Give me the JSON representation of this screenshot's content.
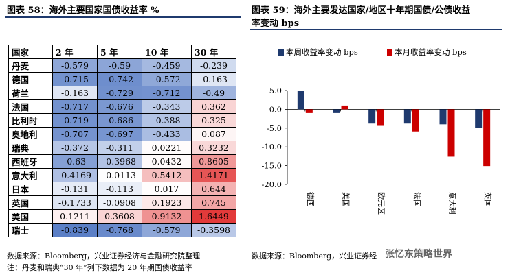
{
  "left": {
    "title": "图表 58：海外主要国家国债收益率 %",
    "source_line1": "数据来源：Bloomberg，兴业证券经济与金融研究院整理",
    "source_line2": "注：丹麦和瑞典“30 年”列下数据为 20 年期国债收益率",
    "table": {
      "headers": [
        "国家",
        "2 年",
        "5 年",
        "10 年",
        "30 年"
      ],
      "rows": [
        {
          "country": "丹麦",
          "values": [
            "-0.579",
            "-0.59",
            "-0.459",
            "-0.239"
          ]
        },
        {
          "country": "德国",
          "values": [
            "-0.715",
            "-0.742",
            "-0.572",
            "-0.163"
          ]
        },
        {
          "country": "荷兰",
          "values": [
            "-0.163",
            "-0.729",
            "-0.712",
            "-0.49"
          ]
        },
        {
          "country": "法国",
          "values": [
            "-0.717",
            "-0.676",
            "-0.343",
            "0.362"
          ]
        },
        {
          "country": "比利时",
          "values": [
            "-0.719",
            "-0.686",
            "-0.388",
            "0.325"
          ]
        },
        {
          "country": "奥地利",
          "values": [
            "-0.707",
            "-0.697",
            "-0.433",
            "0.087"
          ]
        },
        {
          "country": "瑞典",
          "values": [
            "-0.372",
            "-0.311",
            "0.0221",
            "0.3232"
          ]
        },
        {
          "country": "西班牙",
          "values": [
            "-0.63",
            "-0.3968",
            "0.0432",
            "0.8605"
          ]
        },
        {
          "country": "意大利",
          "values": [
            "-0.4169",
            "-0.0113",
            "0.5412",
            "1.4171"
          ]
        },
        {
          "country": "日本",
          "values": [
            "-0.131",
            "-0.113",
            "0.017",
            "0.644"
          ]
        },
        {
          "country": "英国",
          "values": [
            "-0.1733",
            "-0.0908",
            "0.1923",
            "0.745"
          ]
        },
        {
          "country": "美国",
          "values": [
            "0.1211",
            "0.3608",
            "0.9132",
            "1.6449"
          ]
        },
        {
          "country": "瑞士",
          "values": [
            "-0.839",
            "-0.768",
            "-0.579",
            "-0.3598"
          ]
        }
      ]
    }
  },
  "right": {
    "title_line1": "图表 59：海外主要发达国家/地区十年期国债/公债收益",
    "title_line2": "率变动 bps",
    "source": "数据来源：Bloomberg，兴业证券经",
    "watermark": "张忆东策略世界"
  },
  "colors": {
    "rule": "#1f3a6e",
    "weekly": "#1f3a6e",
    "monthly": "#cc0000",
    "neg_strong": "#5b7fc6",
    "pos_strong": "#e23a3a"
  },
  "chart_data": {
    "type": "bar",
    "categories": [
      "德国",
      "美国",
      "欧元区",
      "法国",
      "意大利",
      "英国"
    ],
    "series": [
      {
        "name": "本周收益率变动 bps",
        "values": [
          5.0,
          -1.0,
          -3.8,
          -3.8,
          -4.0,
          -5.0
        ]
      },
      {
        "name": "本月收益率变动 bps",
        "values": [
          -1.0,
          1.0,
          -4.4,
          -5.9,
          -12.6,
          -15.1
        ]
      }
    ],
    "yticks": [
      "5.0",
      "0.0",
      "-5.0",
      "-10.0",
      "-15.0",
      "-20.0"
    ],
    "ylim": [
      -20,
      5
    ],
    "legend": "top",
    "grid": false
  }
}
